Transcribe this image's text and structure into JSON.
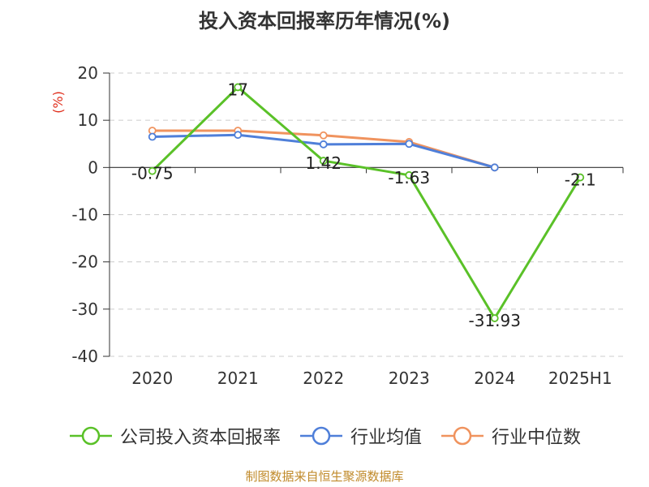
{
  "title": "投入资本回报率历年情况(%)",
  "footer": "制图数据来自恒生聚源数据库",
  "colors": {
    "company": "#5ac128",
    "industry_avg": "#4f7fd9",
    "industry_median": "#f0935e",
    "axis": "#333333",
    "grid": "#cccccc",
    "unit_label": "#e0301e"
  },
  "chart_data": {
    "type": "line",
    "title": "投入资本回报率历年情况(%)",
    "ylabel": "(%)",
    "xlabel": "",
    "categories": [
      "2020",
      "2021",
      "2022",
      "2023",
      "2024",
      "2025H1"
    ],
    "ylim": [
      -40,
      20
    ],
    "yticks": [
      20,
      10,
      0,
      -10,
      -20,
      -30,
      -40
    ],
    "grid": true,
    "legend_position": "bottom",
    "series": [
      {
        "key": "company",
        "name": "公司投入资本回报率",
        "values": [
          -0.75,
          17,
          1.42,
          -1.63,
          -31.93,
          -2.1
        ],
        "labels": [
          "-0.75",
          "17",
          "1.42",
          "-1.63",
          "-31.93",
          "-2.1"
        ]
      },
      {
        "key": "industry_avg",
        "name": "行业均值",
        "values": [
          6.5,
          6.9,
          4.9,
          5.0,
          0.0,
          null
        ]
      },
      {
        "key": "industry_median",
        "name": "行业中位数",
        "values": [
          7.8,
          7.8,
          6.8,
          5.4,
          0.0,
          null
        ]
      }
    ]
  }
}
